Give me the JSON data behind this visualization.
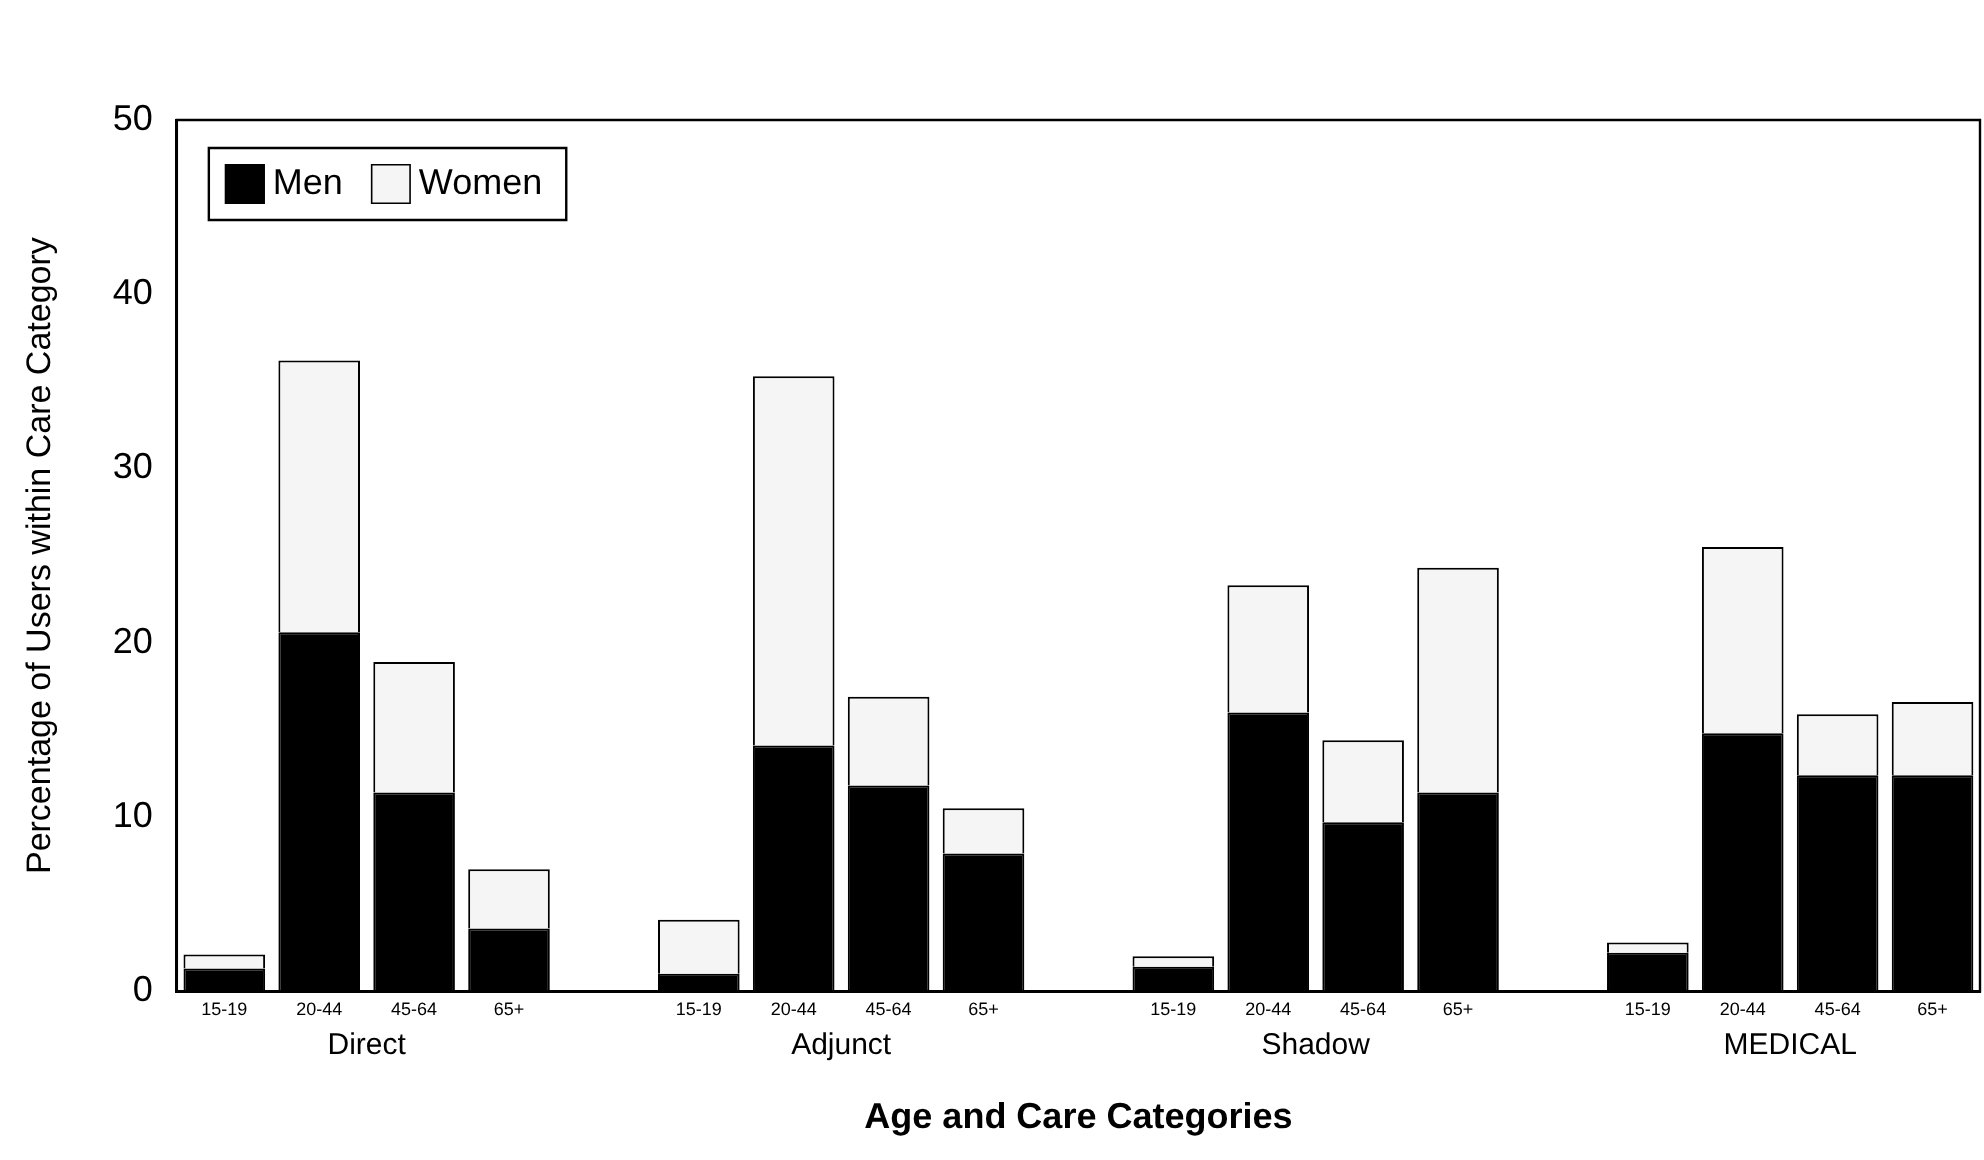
{
  "chart_data": {
    "type": "bar",
    "stacked": true,
    "categories": [
      "15-19",
      "20-44",
      "45-64",
      "65+",
      null,
      "15-19",
      "20-44",
      "45-64",
      "65+",
      null,
      "15-19",
      "20-44",
      "45-64",
      "65+",
      null,
      "15-19",
      "20-44",
      "45-64",
      "65+"
    ],
    "series": [
      {
        "name": "Men",
        "color": "#000000",
        "values": [
          1.3,
          20.6,
          11.4,
          3.6,
          null,
          1.0,
          14.1,
          11.8,
          7.9,
          null,
          1.4,
          16.0,
          9.7,
          11.4,
          null,
          2.2,
          14.8,
          12.4,
          12.4
        ]
      },
      {
        "name": "Women",
        "color": "#f5f5f5",
        "values": [
          0.8,
          15.6,
          7.5,
          3.4,
          null,
          3.1,
          21.2,
          5.1,
          2.6,
          null,
          0.6,
          7.3,
          4.7,
          12.9,
          null,
          0.6,
          10.7,
          3.5,
          4.2
        ]
      }
    ],
    "annotations": [
      "Direct",
      "Adjunct",
      "Shadow",
      "MEDICAL"
    ],
    "xlabel": "Age and Care Categories",
    "ylabel": "Percentage of Users within Care Category",
    "ylim": [
      0,
      50
    ],
    "yticks": [
      0,
      10,
      20,
      30,
      40,
      50
    ],
    "grid": false,
    "legend": "top left"
  }
}
